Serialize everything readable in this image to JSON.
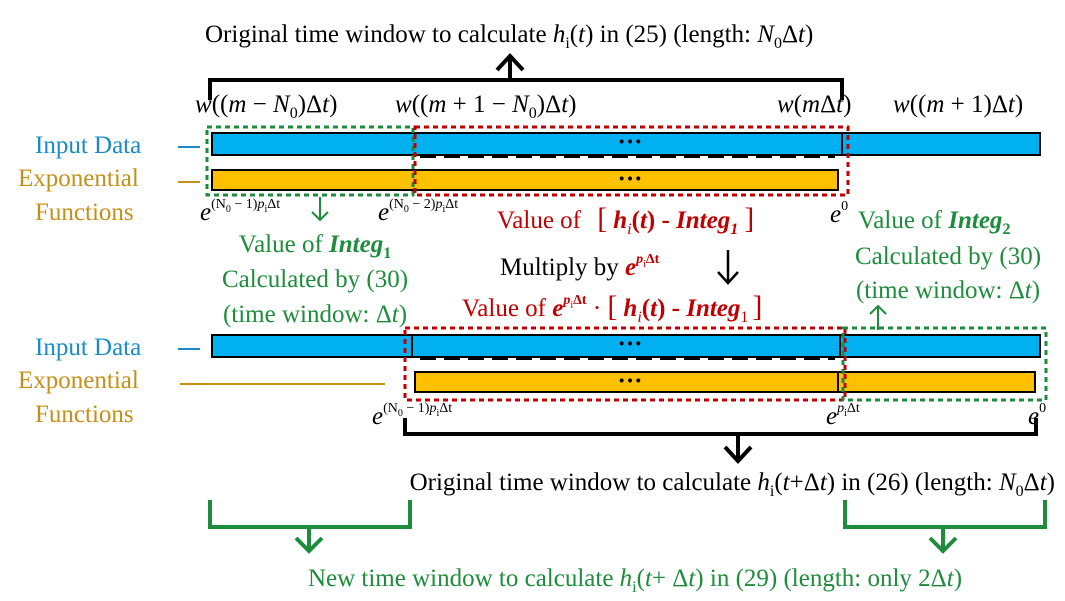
{
  "top_caption": [
    "Original time window to calculate ",
    "h",
    "i",
    "(",
    "t",
    ")",
    " in (25) (length: ",
    "N",
    "0",
    "Δ",
    "t",
    ")"
  ],
  "window_labels": [
    [
      "w",
      "((",
      "m",
      " − ",
      "N",
      "0",
      ")Δ",
      "t",
      ")"
    ],
    [
      "w",
      "((",
      "m",
      " + 1 − ",
      "N",
      "0",
      ")Δ",
      "t",
      ")"
    ],
    [
      "w",
      "(",
      "m",
      "Δ",
      "t",
      ")"
    ],
    [
      "w",
      "((",
      "m",
      " + 1)Δ",
      "t",
      ")"
    ]
  ],
  "row_labels_1": [
    "Input Data",
    "Exponential",
    "Functions"
  ],
  "row_labels_2": [
    "Input Data",
    "Exponential",
    "Functions"
  ],
  "dots": [
    "···",
    "···",
    "···",
    "···"
  ],
  "exponents_1": [
    [
      "e",
      "(N",
      "0",
      " − 1)",
      "p",
      "i",
      "Δt"
    ],
    [
      "e",
      "(N",
      "0",
      " − 2)",
      "p",
      "i",
      "Δt"
    ],
    [
      "e",
      "0"
    ]
  ],
  "exponents_2": [
    [
      "e",
      "(N",
      "0",
      " − 1)",
      "p",
      "i",
      "Δt"
    ],
    [
      "e",
      "p",
      "i",
      "Δt"
    ],
    [
      "e",
      "0"
    ]
  ],
  "integ1_note": [
    "Value of ",
    "Integ",
    "1",
    "Calculated by (30)",
    "(time window: Δ",
    "t",
    ")"
  ],
  "diff_note": [
    "Value of ",
    "[",
    "h",
    "i",
    "(",
    "t",
    ")",
    " - ",
    "Integ",
    "1",
    "]"
  ],
  "multiply_note": [
    "Multiply by ",
    "e",
    "p",
    "i",
    "Δt"
  ],
  "integ2_note": [
    "Value of ",
    "Integ",
    "2",
    "Calculated by (30)",
    "(time window: Δ",
    "t",
    ")"
  ],
  "product_note": [
    "Value of ",
    "e",
    "p",
    "i",
    "Δt",
    " · ",
    "[",
    "h",
    "i",
    "(",
    "t",
    ")",
    " - ",
    "Integ",
    "1",
    "]"
  ],
  "mid_caption": [
    "Original time window to calculate ",
    "h",
    "i",
    "(",
    "t",
    "+Δ",
    "t",
    ") in (26) (length: ",
    "N",
    "0",
    "Δ",
    "t",
    ")"
  ],
  "bottom_caption": [
    "New time window to calculate ",
    "h",
    "i",
    "(",
    "t",
    "+ Δ",
    "t",
    ") in (29) (length: only 2Δ",
    "t",
    ")"
  ]
}
